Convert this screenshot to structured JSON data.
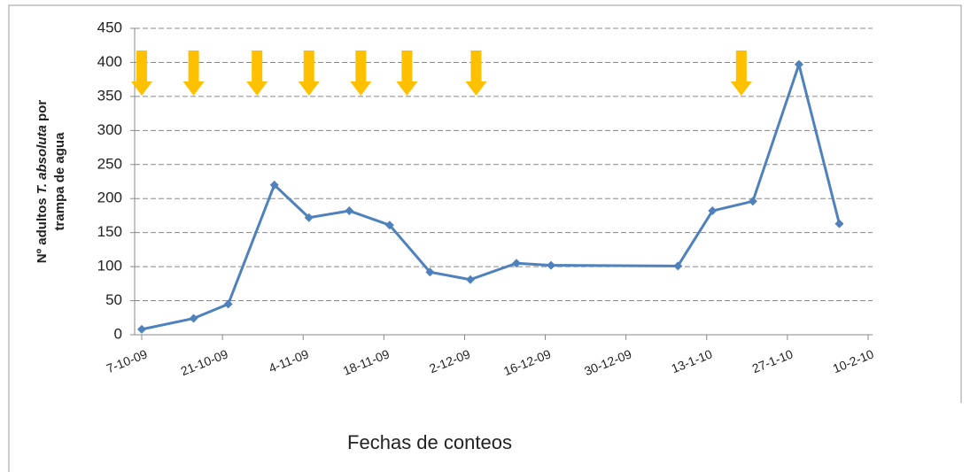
{
  "chart_data": {
    "type": "line",
    "xlabel": "Fechas de conteos",
    "ylabel": {
      "prefix": "Nº adultos ",
      "italic": "T. absoluta",
      "suffix": " por",
      "line2": "trampa de agua"
    },
    "x": [
      "2009-10-07",
      "2009-10-16",
      "2009-10-22",
      "2009-10-30",
      "2009-11-05",
      "2009-11-12",
      "2009-11-19",
      "2009-11-26",
      "2009-12-03",
      "2009-12-11",
      "2009-12-17",
      "2010-01-08",
      "2010-01-14",
      "2010-01-21",
      "2010-01-29",
      "2010-02-05"
    ],
    "series": [
      {
        "name": "adultos",
        "color": "#4f81bd",
        "values": [
          8,
          24,
          45,
          220,
          172,
          182,
          161,
          92,
          81,
          105,
          102,
          101,
          182,
          196,
          397,
          163
        ]
      }
    ],
    "arrows": {
      "color": "#ffc000",
      "x": [
        "2009-10-07",
        "2009-10-16",
        "2009-10-27",
        "2009-11-05",
        "2009-11-14",
        "2009-11-22",
        "2009-12-04",
        "2010-01-19"
      ]
    },
    "xlim": [
      "2009-10-07",
      "2010-02-10"
    ],
    "xticks": [
      {
        "value": "2009-10-07",
        "label": "7-10-09"
      },
      {
        "value": "2009-10-21",
        "label": "21-10-09"
      },
      {
        "value": "2009-11-04",
        "label": "4-11-09"
      },
      {
        "value": "2009-11-18",
        "label": "18-11-09"
      },
      {
        "value": "2009-12-02",
        "label": "2-12-09"
      },
      {
        "value": "2009-12-16",
        "label": "16-12-09"
      },
      {
        "value": "2009-12-30",
        "label": "30-12-09"
      },
      {
        "value": "2010-01-13",
        "label": "13-1-10"
      },
      {
        "value": "2010-01-27",
        "label": "27-1-10"
      },
      {
        "value": "2010-02-10",
        "label": "10-2-10"
      }
    ],
    "ylim": [
      0,
      450
    ],
    "yticks": [
      0,
      50,
      100,
      150,
      200,
      250,
      300,
      350,
      400,
      450
    ],
    "grid": true
  }
}
